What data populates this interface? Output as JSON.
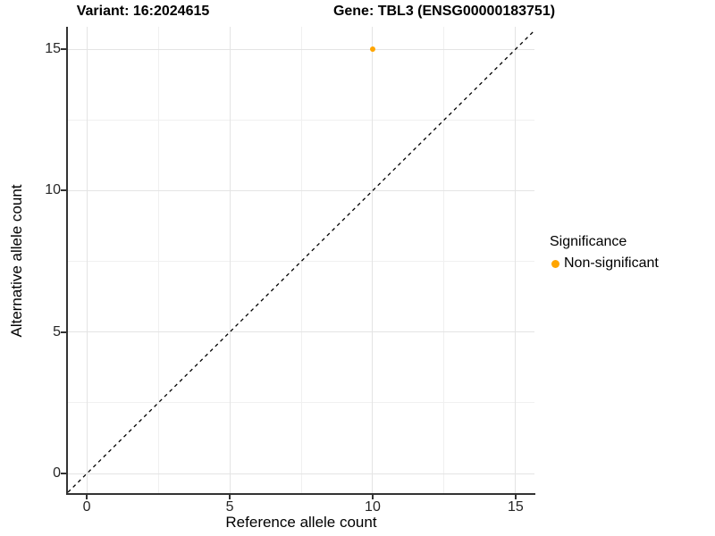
{
  "chart_data": {
    "type": "scatter",
    "titles": {
      "left": "Variant: 16:2024615",
      "right": "Gene: TBL3 (ENSG00000183751)"
    },
    "xlabel": "Reference allele count",
    "ylabel": "Alternative allele count",
    "x_ticks": [
      0,
      5,
      10,
      15
    ],
    "y_ticks": [
      0,
      5,
      10,
      15
    ],
    "x_minor_ticks": [
      2.5,
      7.5,
      12.5
    ],
    "y_minor_ticks": [
      2.5,
      7.5,
      12.5
    ],
    "xlim": [
      -0.66,
      15.66
    ],
    "ylim": [
      -0.69,
      15.79
    ],
    "grid": true,
    "identity_line": {
      "slope": 1,
      "intercept": 0,
      "style": "dashed",
      "color": "#000000"
    },
    "series": [
      {
        "name": "Non-significant",
        "color": "#FFA500",
        "points": [
          {
            "x": 10,
            "y": 15
          }
        ]
      }
    ],
    "legend": {
      "title": "Significance",
      "position": "right",
      "items": [
        {
          "label": "Non-significant",
          "color": "#FFA500"
        }
      ]
    }
  },
  "colors": {
    "axis": "#333333",
    "grid_major": "#e4e4e4",
    "grid_minor": "#f0f0f0",
    "background": "#ffffff"
  }
}
